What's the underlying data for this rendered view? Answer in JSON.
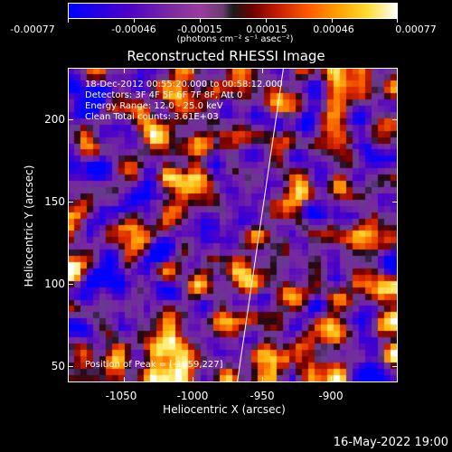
{
  "colorbar": {
    "tick_labels": [
      "-0.00077",
      "-0.00046",
      "-0.00015",
      "0.00015",
      "0.00046",
      "0.00077"
    ],
    "unit_label": "(photons cm⁻² s⁻¹ asec⁻²)"
  },
  "title": "Reconstructed RHESSI Image",
  "annotations": {
    "time_range": "18-Dec-2012 00:55:20.000 to 00:58:12.000",
    "detectors": "Detectors: 3F 4F 5F 6F 7F 8F, Att 0",
    "energy_range": "Energy Range: 12.0 - 25.0 keV",
    "algorithm": "Clean      Total counts: 3.61E+03",
    "peak": "Position of Peak = [-1059,227]"
  },
  "axes": {
    "x_label": "Heliocentric X (arcsec)",
    "y_label": "Heliocentric Y (arcsec)",
    "x_ticks": [
      "-1050",
      "-1000",
      "-950",
      "-900"
    ],
    "y_ticks": [
      "200",
      "150",
      "100",
      "50"
    ]
  },
  "datestamp": "16-May-2022 19:00",
  "colors": {
    "background": "#000000",
    "limb_line": "#ffffff"
  }
}
